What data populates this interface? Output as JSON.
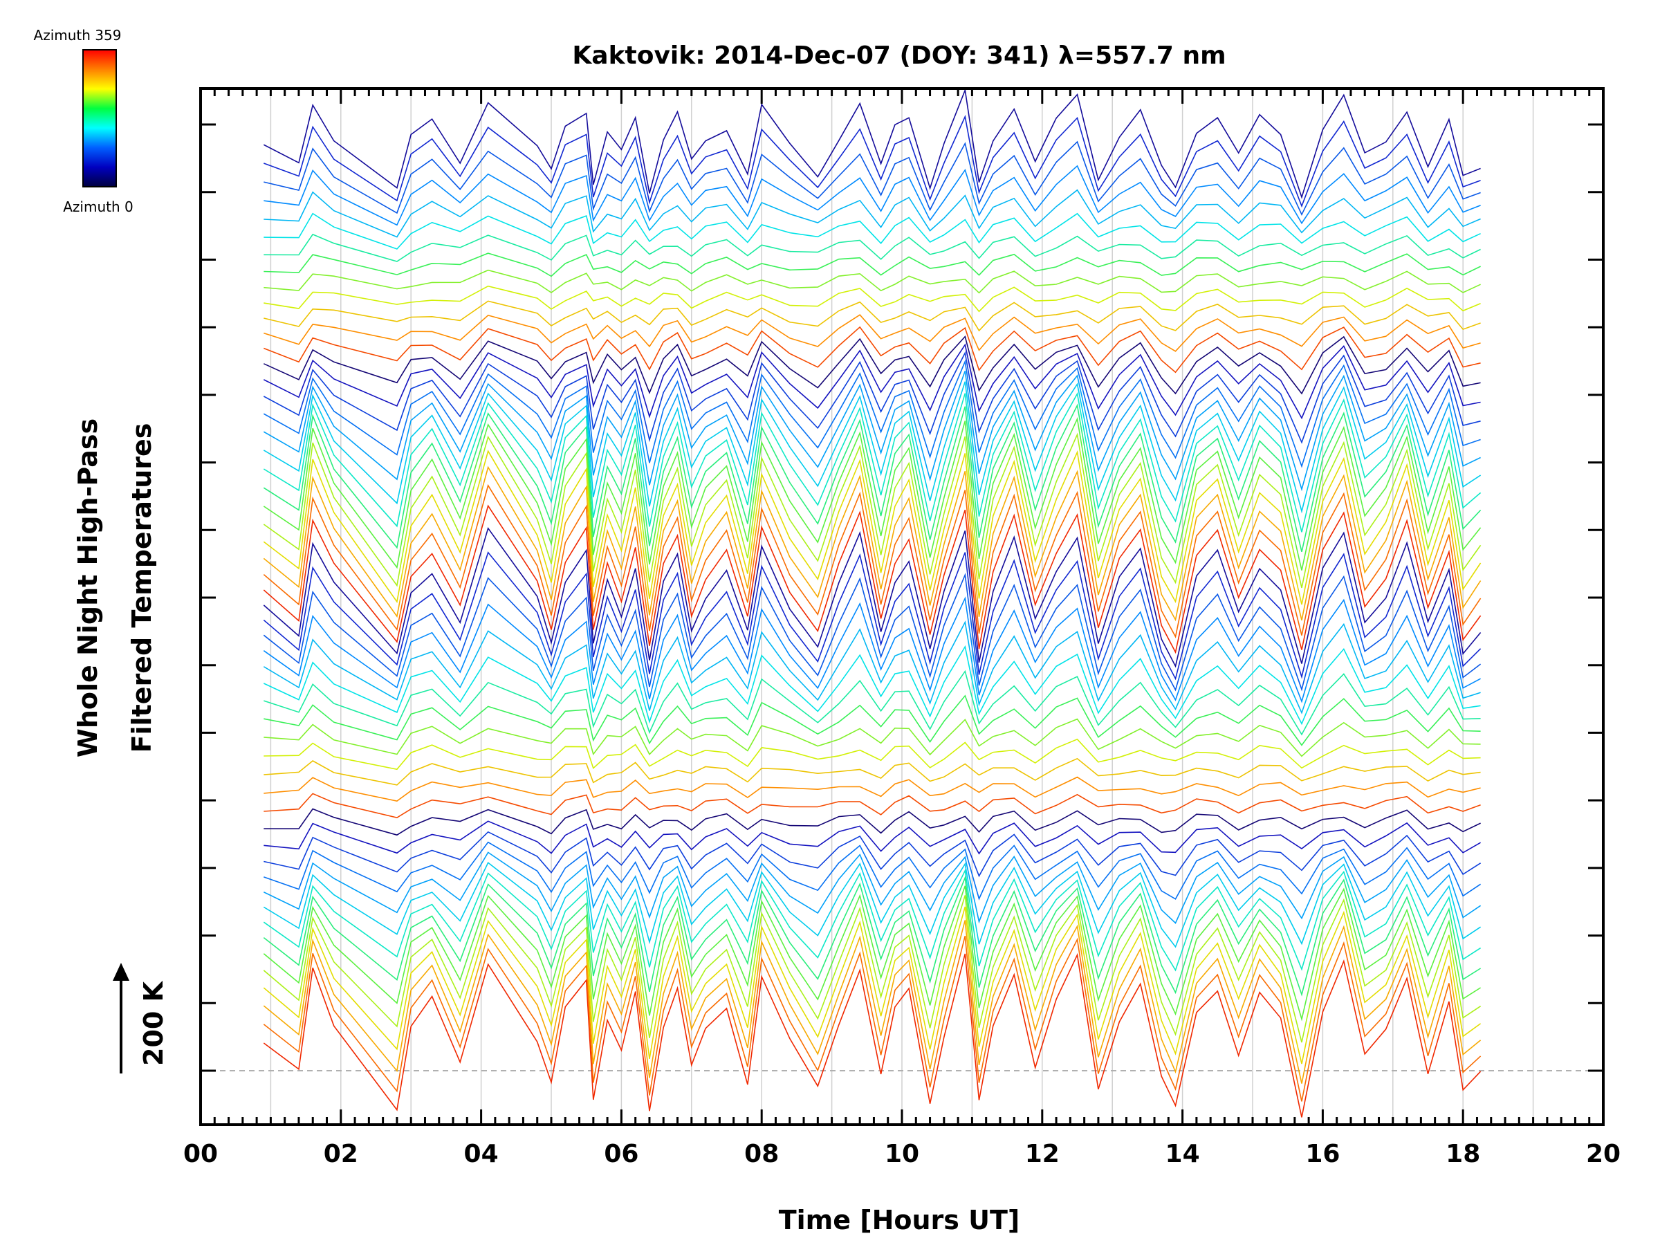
{
  "chart_data": {
    "type": "line",
    "title": "Kaktovik: 2014-Dec-07 (DOY: 341) λ=557.7 nm",
    "xlabel": "Time [Hours UT]",
    "ylabel_line1": "Whole Night High-Pass",
    "ylabel_line2": "Filtered Temperatures",
    "scale_label": "200 K",
    "xlim": [
      0,
      20
    ],
    "x_tick_labels": [
      "00",
      "02",
      "04",
      "06",
      "08",
      "10",
      "12",
      "14",
      "16",
      "18",
      "20"
    ],
    "x_tick_values": [
      0,
      2,
      4,
      6,
      8,
      10,
      12,
      14,
      16,
      18,
      20
    ],
    "x_start_hours": 0.9,
    "x_end_hours": 18.25,
    "y_major_ticks": 15,
    "azimuth_series_count": 54,
    "azimuth_bands": 4,
    "colorbar": {
      "top_label": "Azimuth 359",
      "bottom_label": "Azimuth 0",
      "colors": [
        "#ff0000",
        "#ff8000",
        "#ffff00",
        "#00ff40",
        "#00ffff",
        "#0060ff",
        "#0000c0",
        "#000040"
      ]
    },
    "anchor_times": [
      0.9,
      1.4,
      1.6,
      1.9,
      2.8,
      3.0,
      3.3,
      3.7,
      4.1,
      4.8,
      5.0,
      5.2,
      5.5,
      5.6,
      5.8,
      6.0,
      6.2,
      6.4,
      6.6,
      6.8,
      7.0,
      7.2,
      7.5,
      7.8,
      8.0,
      8.4,
      8.8,
      9.1,
      9.4,
      9.7,
      9.9,
      10.1,
      10.4,
      10.6,
      10.9,
      11.1,
      11.3,
      11.6,
      11.9,
      12.2,
      12.5,
      12.8,
      13.1,
      13.4,
      13.7,
      13.9,
      14.2,
      14.5,
      14.8,
      15.1,
      15.4,
      15.7,
      16.0,
      16.3,
      16.6,
      16.9,
      17.2,
      17.5,
      17.8,
      18.0,
      18.25
    ],
    "anchor_values_K": [
      0,
      -60,
      140,
      40,
      -120,
      30,
      80,
      -40,
      160,
      10,
      -80,
      60,
      120,
      -100,
      50,
      -20,
      90,
      -130,
      40,
      110,
      -50,
      20,
      70,
      -70,
      130,
      0,
      -90,
      40,
      150,
      -60,
      60,
      100,
      -110,
      20,
      170,
      -120,
      30,
      140,
      -40,
      80,
      160,
      -90,
      50,
      120,
      -70,
      -130,
      60,
      110,
      -20,
      90,
      40,
      -140,
      70,
      160,
      -30,
      20,
      130,
      -50,
      80,
      -100,
      -60
    ]
  }
}
